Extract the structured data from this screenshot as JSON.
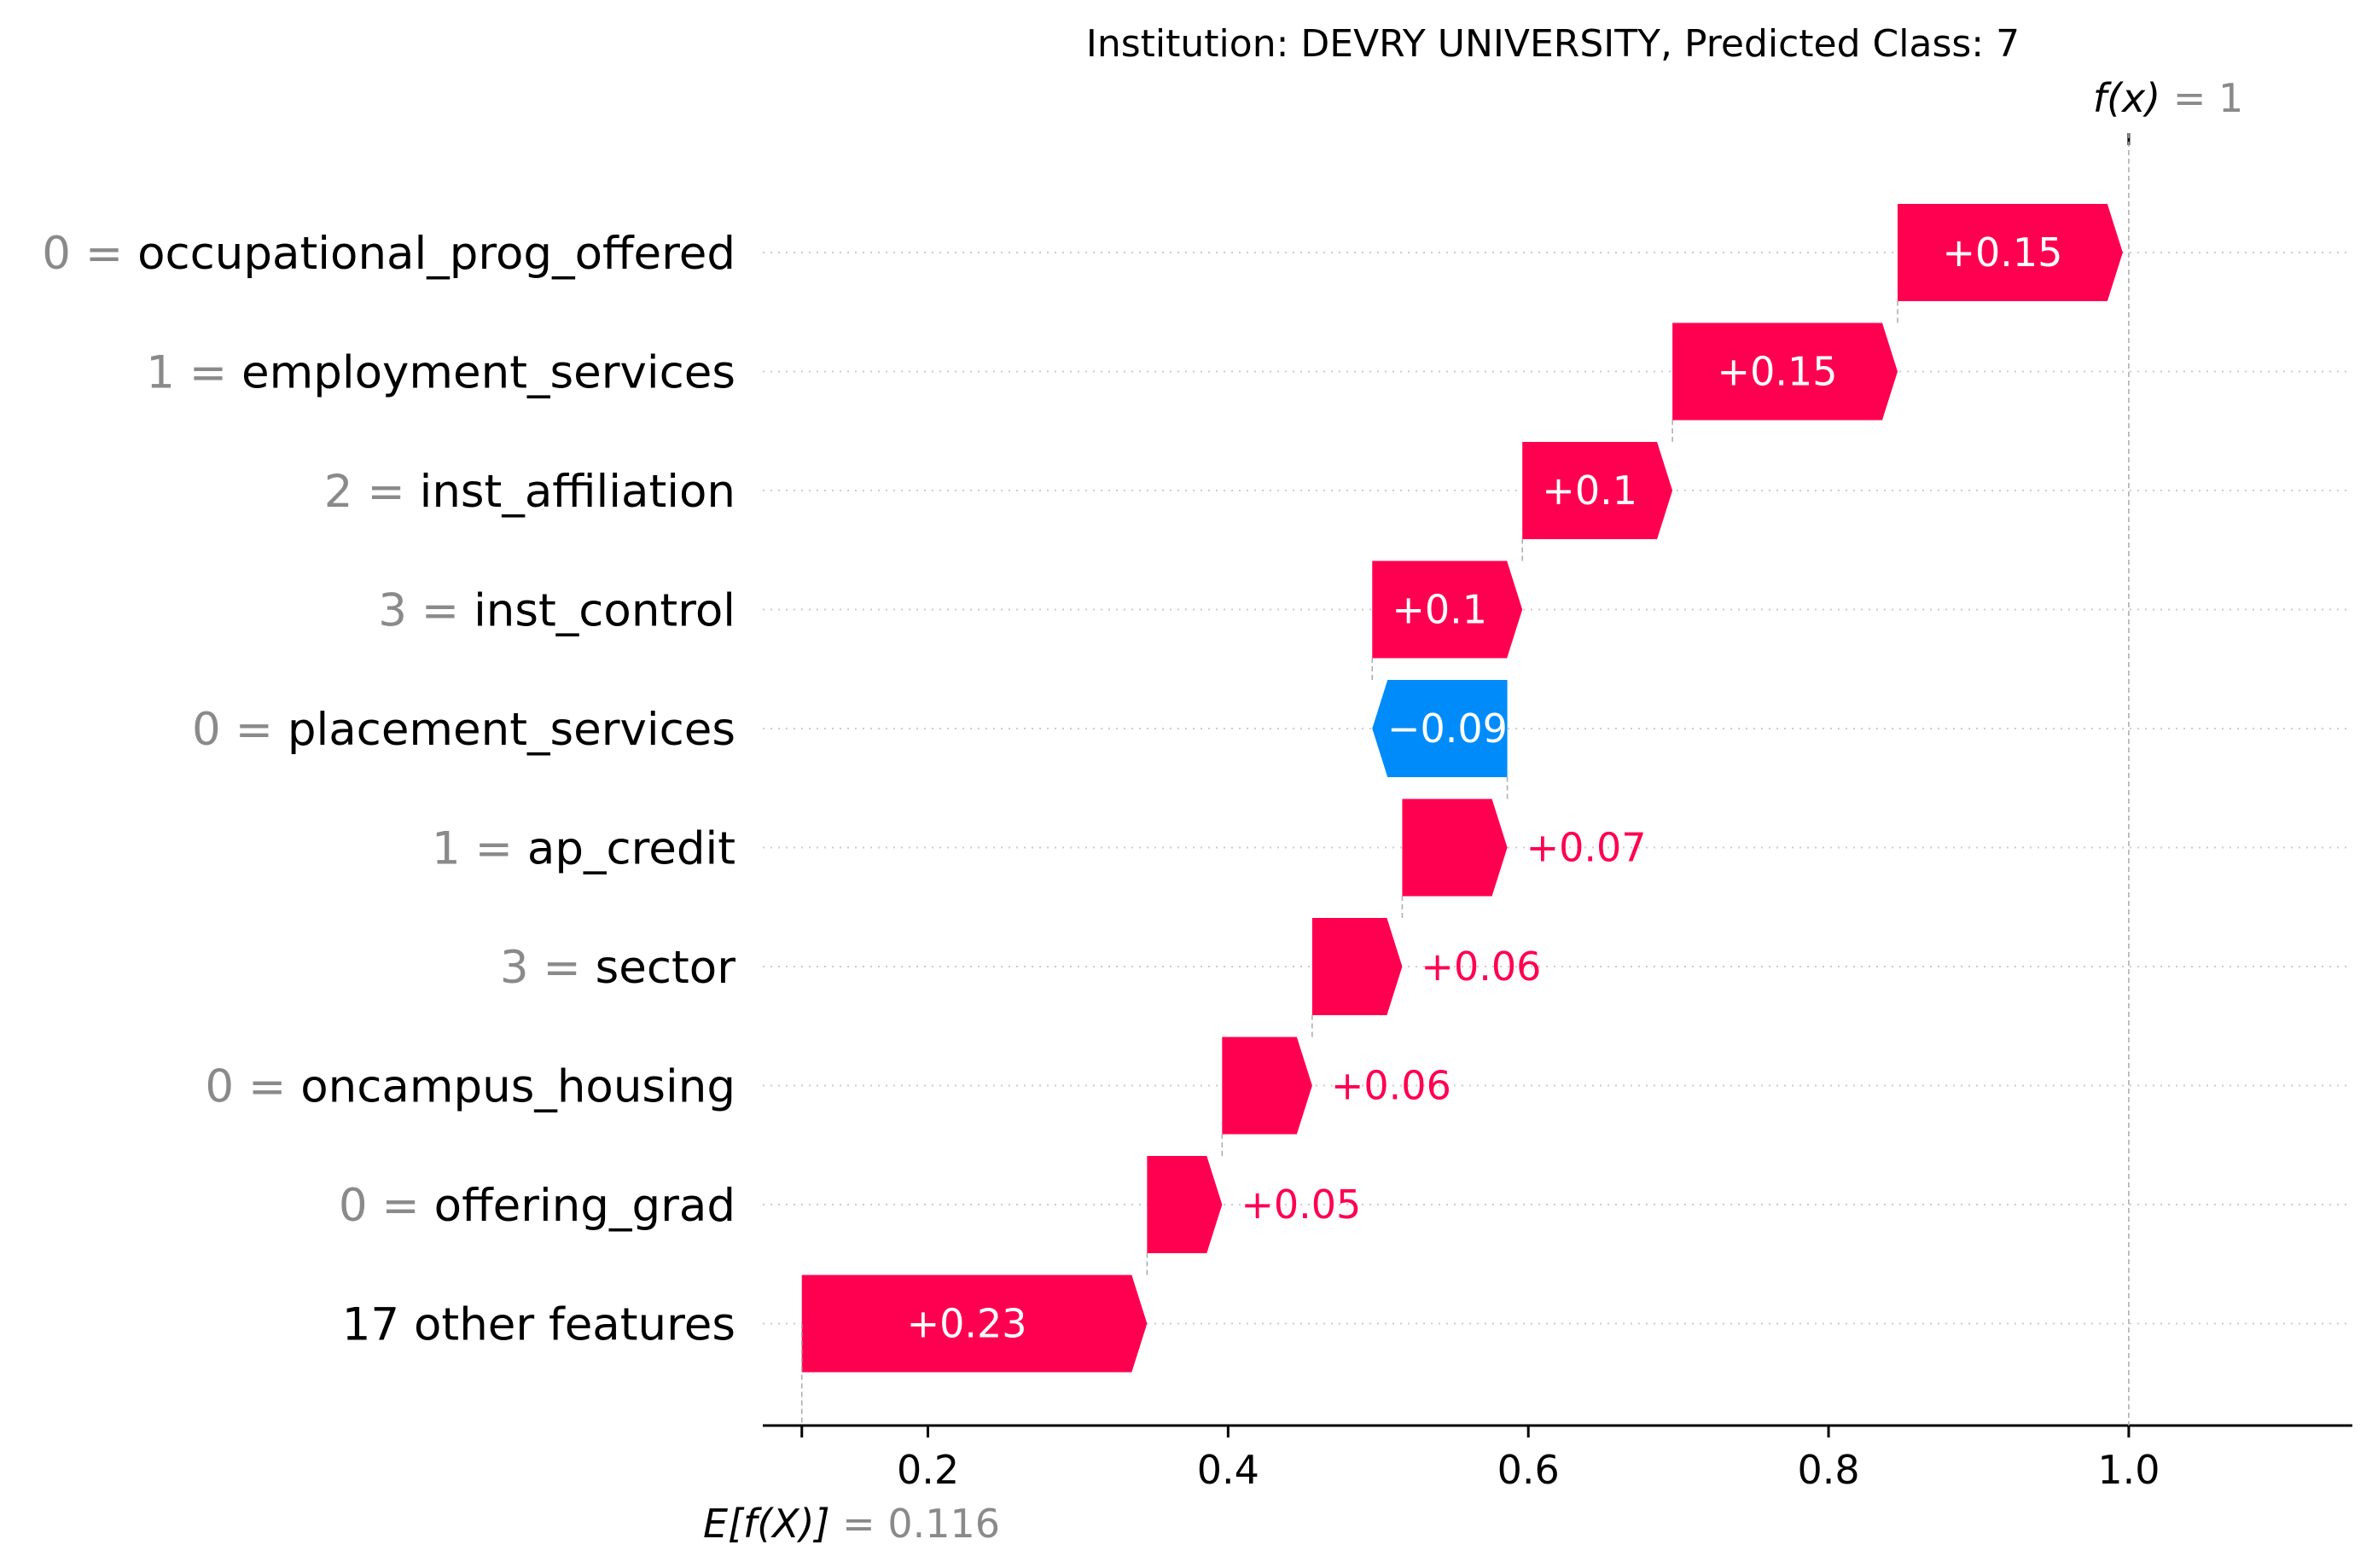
{
  "chart_data": {
    "type": "waterfall",
    "title": "Institution: DEVRY UNIVERSITY, Predicted Class: 7",
    "base_value": 0.116,
    "base_value_label": "0.116",
    "output_value": 1,
    "output_value_label": "1",
    "output_label": "f(x)",
    "base_label": "E[f(X)]",
    "x_ticks": [
      0.2,
      0.4,
      0.6,
      0.8,
      1.0
    ],
    "x_tick_labels": [
      "0.2",
      "0.4",
      "0.6",
      "0.8",
      "1.0"
    ],
    "xlim": [
      0.09,
      1.145
    ],
    "positive_color": "#ff0051",
    "negative_color": "#008bfb",
    "features": [
      {
        "value": "0",
        "name": "occupational_prog_offered",
        "contribution": 0.15,
        "label": "+0.15"
      },
      {
        "value": "1",
        "name": "employment_services",
        "contribution": 0.15,
        "label": "+0.15"
      },
      {
        "value": "2",
        "name": "inst_affiliation",
        "contribution": 0.1,
        "label": "+0.1"
      },
      {
        "value": "3",
        "name": "inst_control",
        "contribution": 0.1,
        "label": "+0.1"
      },
      {
        "value": "0",
        "name": "placement_services",
        "contribution": -0.09,
        "label": "−0.09"
      },
      {
        "value": "1",
        "name": "ap_credit",
        "contribution": 0.07,
        "label": "+0.07"
      },
      {
        "value": "3",
        "name": "sector",
        "contribution": 0.06,
        "label": "+0.06"
      },
      {
        "value": "0",
        "name": "oncampus_housing",
        "contribution": 0.06,
        "label": "+0.06"
      },
      {
        "value": "0",
        "name": "offering_grad",
        "contribution": 0.05,
        "label": "+0.05"
      },
      {
        "value": "",
        "name": "17 other features",
        "contribution": 0.23,
        "label": "+0.23"
      }
    ]
  }
}
